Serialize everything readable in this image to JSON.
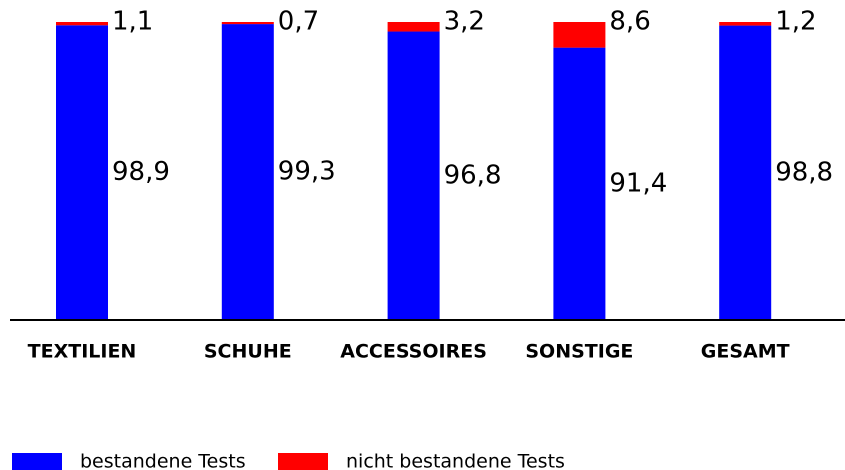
{
  "chart_data": {
    "type": "stacked_bar",
    "categories": [
      "TEXTILIEN",
      "SCHUHE",
      "ACCESSOIRES",
      "SONSTIGE",
      "GESAMT"
    ],
    "series": [
      {
        "name": "bestandene Tests",
        "color": "#0000ff",
        "values": [
          98.9,
          99.3,
          96.8,
          91.4,
          98.8
        ],
        "value_labels": [
          "98,9",
          "99,3",
          "96,8",
          "91,4",
          "98,8"
        ]
      },
      {
        "name": "nicht bestandene Tests",
        "color": "#ff0000",
        "values": [
          1.1,
          0.7,
          3.2,
          8.6,
          1.2
        ],
        "value_labels": [
          "1,1",
          "0,7",
          "3,2",
          "8,6",
          "1,2"
        ]
      }
    ],
    "ylim": [
      0,
      100
    ],
    "legend": "bottom"
  }
}
